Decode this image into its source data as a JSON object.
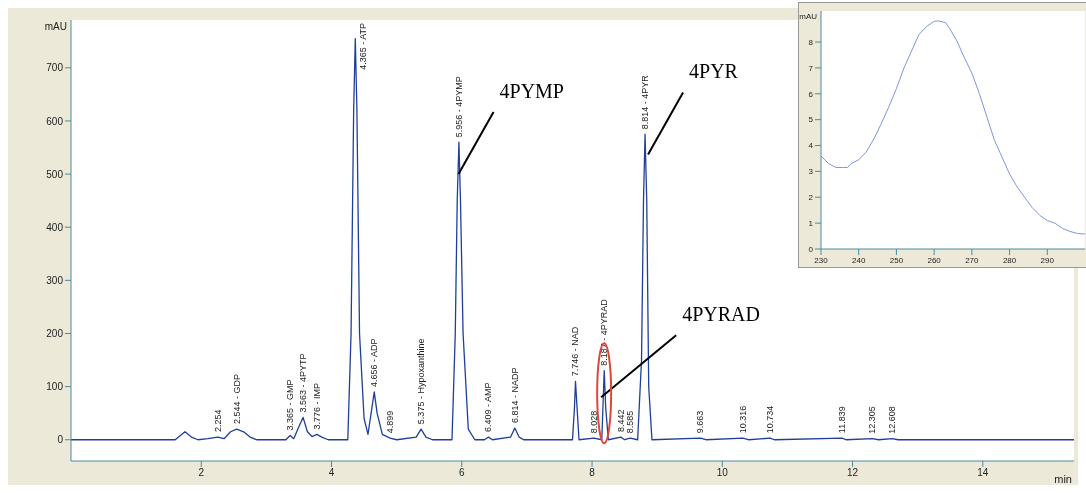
{
  "chart_data": [
    {
      "type": "line",
      "xlabel": "min",
      "ylabel": "mAU",
      "xlim": [
        0,
        15.4
      ],
      "ylim": [
        -40,
        790
      ],
      "xticks": [
        2,
        4,
        6,
        8,
        10,
        12,
        14
      ],
      "yticks": [
        0,
        100,
        200,
        300,
        400,
        500,
        600,
        700
      ],
      "x": [
        0,
        1.6,
        1.68,
        1.75,
        1.85,
        1.95,
        2.1,
        2.254,
        2.35,
        2.45,
        2.544,
        2.65,
        2.75,
        2.85,
        3.3,
        3.365,
        3.42,
        3.5,
        3.563,
        3.63,
        3.7,
        3.776,
        3.85,
        3.95,
        4.25,
        4.3,
        4.34,
        4.365,
        4.39,
        4.43,
        4.5,
        4.56,
        4.62,
        4.656,
        4.7,
        4.78,
        4.899,
        5.0,
        5.3,
        5.375,
        5.45,
        5.55,
        5.85,
        5.9,
        5.93,
        5.956,
        5.98,
        6.02,
        6.1,
        6.2,
        6.35,
        6.409,
        6.47,
        6.75,
        6.814,
        6.88,
        6.95,
        7.7,
        7.73,
        7.746,
        7.77,
        7.8,
        8.028,
        8.15,
        8.17,
        8.187,
        8.21,
        8.25,
        8.442,
        8.5,
        8.585,
        8.7,
        8.76,
        8.79,
        8.814,
        8.84,
        8.87,
        8.92,
        9.663,
        9.75,
        10.316,
        10.4,
        10.734,
        10.8,
        11.839,
        11.9,
        12.305,
        12.4,
        12.608,
        12.7,
        15.4
      ],
      "series": [
        {
          "color": "#1f3f9a",
          "values": [
            0,
            0,
            8,
            15,
            5,
            0,
            2,
            5,
            2,
            15,
            20,
            15,
            5,
            0,
            0,
            8,
            2,
            25,
            42,
            15,
            6,
            10,
            5,
            0,
            0,
            200,
            620,
            755,
            620,
            200,
            40,
            10,
            60,
            90,
            50,
            10,
            3,
            0,
            5,
            20,
            5,
            0,
            0,
            200,
            450,
            560,
            450,
            200,
            20,
            0,
            0,
            5,
            0,
            5,
            22,
            5,
            0,
            0,
            60,
            110,
            60,
            0,
            3,
            0,
            70,
            130,
            60,
            0,
            5,
            0,
            3,
            0,
            150,
            450,
            575,
            450,
            100,
            0,
            3,
            0,
            3,
            0,
            3,
            0,
            3,
            0,
            2,
            0,
            2,
            0,
            0
          ]
        }
      ],
      "annotations": [
        {
          "text": "2.254",
          "x": 2.254,
          "y": 5
        },
        {
          "text": "2.544 - GDP",
          "x": 2.544,
          "y": 20
        },
        {
          "text": "3.365 - GMP",
          "x": 3.365,
          "y": 8
        },
        {
          "text": "3.563 - 4PYTP",
          "x": 3.563,
          "y": 42
        },
        {
          "text": "3.776 - IMP",
          "x": 3.776,
          "y": 10
        },
        {
          "text": "4.365 - ATP",
          "x": 4.365,
          "y": 755
        },
        {
          "text": "4.656 - ADP",
          "x": 4.656,
          "y": 90
        },
        {
          "text": "4.899",
          "x": 4.899,
          "y": 3
        },
        {
          "text": "5.375 - Hypoxanthine",
          "x": 5.375,
          "y": 20
        },
        {
          "text": "5.956 - 4PYMP",
          "x": 5.956,
          "y": 560
        },
        {
          "text": "6.409 - AMP",
          "x": 6.409,
          "y": 5
        },
        {
          "text": "6.814 - NADP",
          "x": 6.814,
          "y": 22
        },
        {
          "text": "7.746 - NAD",
          "x": 7.746,
          "y": 110
        },
        {
          "text": "8.028",
          "x": 8.028,
          "y": 3
        },
        {
          "text": "8.187 - 4PYRAD",
          "x": 8.187,
          "y": 130
        },
        {
          "text": "8.442",
          "x": 8.442,
          "y": 5
        },
        {
          "text": "8.585",
          "x": 8.585,
          "y": 3
        },
        {
          "text": "8.814 - 4PYR",
          "x": 8.814,
          "y": 575
        },
        {
          "text": "9.663",
          "x": 9.663,
          "y": 3
        },
        {
          "text": "10.316",
          "x": 10.316,
          "y": 3
        },
        {
          "text": "10.734",
          "x": 10.734,
          "y": 3
        },
        {
          "text": "11.839",
          "x": 11.839,
          "y": 3
        },
        {
          "text": "12.305",
          "x": 12.305,
          "y": 2
        },
        {
          "text": "12.608",
          "x": 12.608,
          "y": 2
        },
        {
          "text": "4PYMP",
          "x": 5.95,
          "y": 500
        },
        {
          "text": "4PYR",
          "x": 8.86,
          "y": 537
        },
        {
          "text": "4PYRAD",
          "x": 8.14,
          "y": 80
        }
      ]
    },
    {
      "type": "line",
      "ylabel": "mAU",
      "xlim": [
        230,
        300
      ],
      "ylim": [
        0,
        9.2
      ],
      "xticks": [
        230,
        240,
        250,
        260,
        270,
        280,
        290
      ],
      "yticks": [
        0,
        1,
        2,
        3,
        4,
        5,
        6,
        7,
        8
      ],
      "x": [
        230,
        232,
        234,
        236,
        237,
        238,
        240,
        242,
        244,
        246,
        248,
        250,
        252,
        254,
        256,
        258,
        260,
        261,
        263,
        264,
        266,
        268,
        270,
        272,
        274,
        276,
        278,
        280,
        282,
        284,
        286,
        288,
        290,
        292,
        294,
        296,
        298,
        300
      ],
      "series": [
        {
          "color": "#8096dd",
          "values": [
            3.6,
            3.3,
            3.15,
            3.15,
            3.15,
            3.3,
            3.45,
            3.75,
            4.25,
            4.85,
            5.5,
            6.2,
            7.0,
            7.65,
            8.3,
            8.6,
            8.8,
            8.82,
            8.75,
            8.55,
            8.05,
            7.4,
            6.8,
            6.0,
            5.1,
            4.2,
            3.55,
            2.9,
            2.4,
            2.0,
            1.6,
            1.3,
            1.1,
            1.0,
            0.8,
            0.68,
            0.6,
            0.58
          ]
        }
      ]
    }
  ]
}
